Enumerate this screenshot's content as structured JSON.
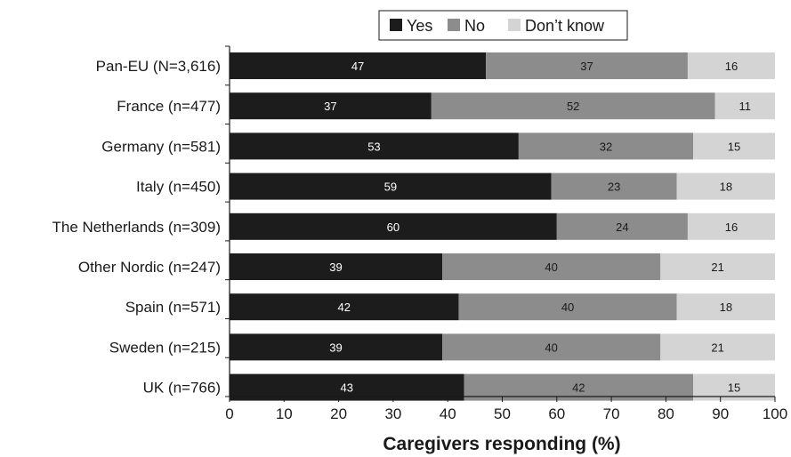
{
  "chart_data": {
    "type": "bar",
    "orientation": "horizontal",
    "stacked": true,
    "title": "",
    "xlabel": "Caregivers responding (%)",
    "ylabel": "",
    "xlim": [
      0,
      100
    ],
    "xticks": [
      0,
      10,
      20,
      30,
      40,
      50,
      60,
      70,
      80,
      90,
      100
    ],
    "grid": false,
    "legend_position": "top",
    "categories": [
      "Pan-EU (N=3,616)",
      "France (n=477)",
      "Germany (n=581)",
      "Italy (n=450)",
      "The Netherlands (n=309)",
      "Other Nordic (n=247)",
      "Spain (n=571)",
      "Sweden (n=215)",
      "UK (n=766)"
    ],
    "series": [
      {
        "name": "Yes",
        "color": "#1c1c1c",
        "label_color": "#ffffff",
        "values": [
          47,
          37,
          53,
          59,
          60,
          39,
          42,
          39,
          43
        ]
      },
      {
        "name": "No",
        "color": "#8c8c8c",
        "label_color": "#1a1a1a",
        "values": [
          37,
          52,
          32,
          23,
          24,
          40,
          40,
          40,
          42
        ]
      },
      {
        "name": "Don’t know",
        "color": "#d4d4d4",
        "label_color": "#1a1a1a",
        "values": [
          16,
          11,
          15,
          18,
          16,
          21,
          18,
          21,
          15
        ]
      }
    ]
  }
}
